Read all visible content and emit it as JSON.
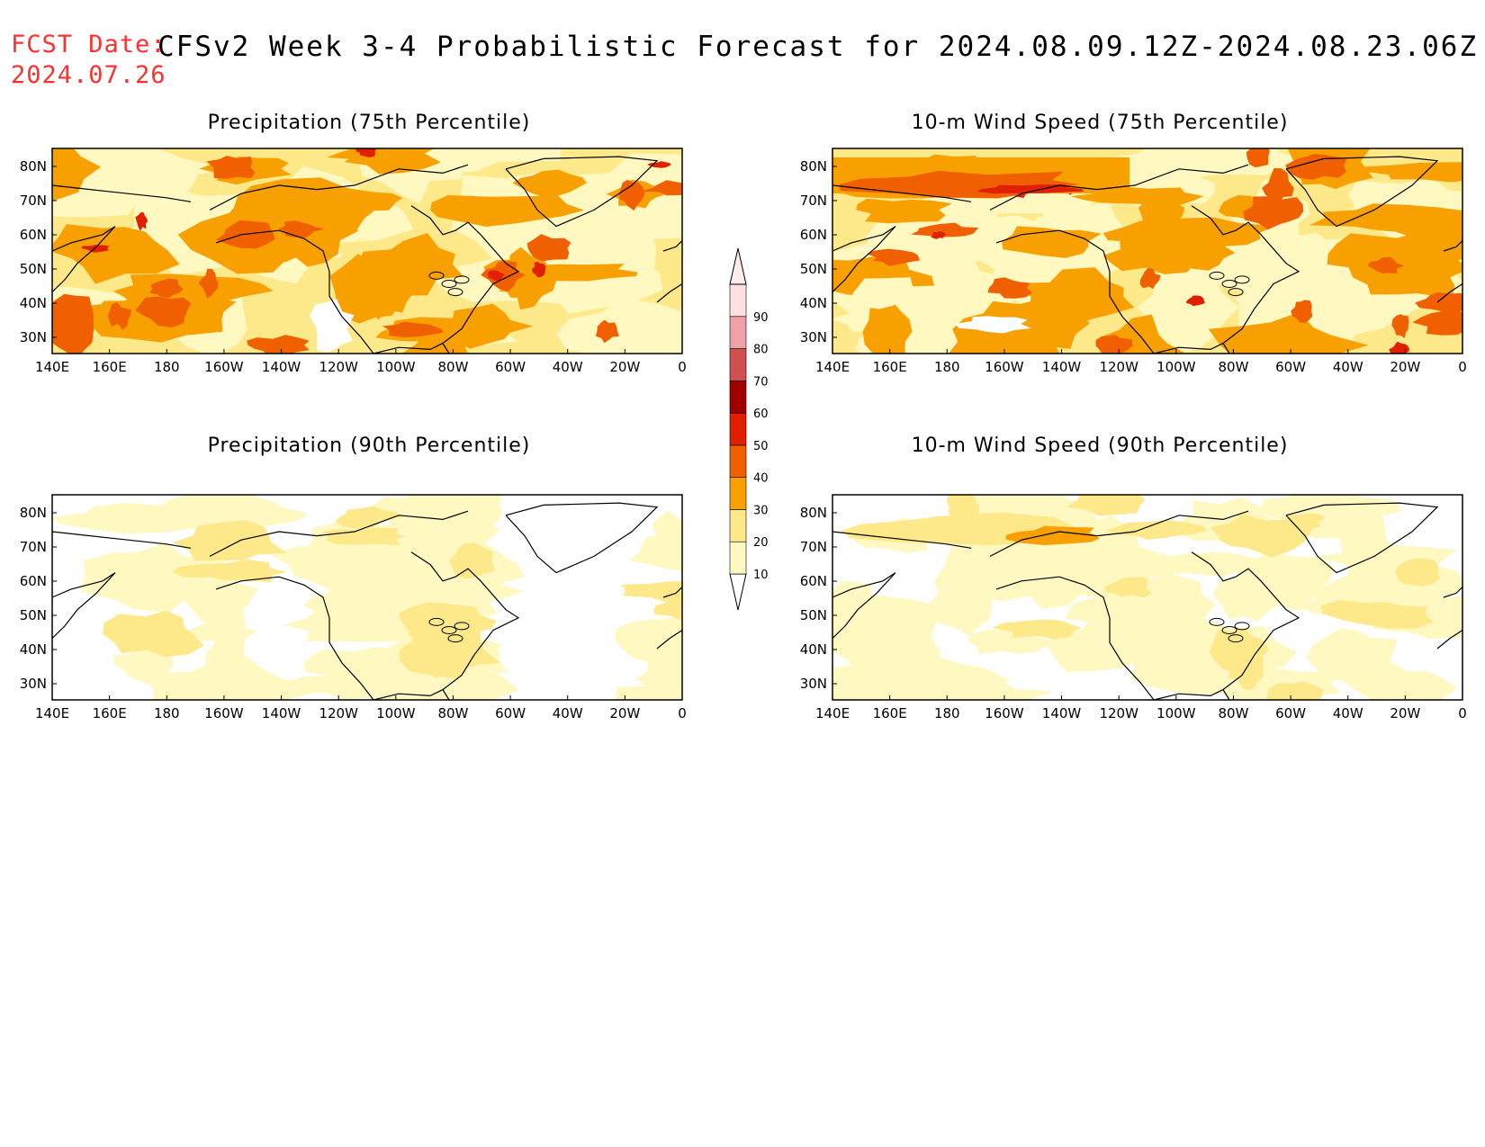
{
  "header": {
    "fcst_label": "FCST Date:",
    "fcst_date": "2024.07.26",
    "title": "CFSv2 Week 3-4 Probabilistic Forecast for 2024.08.09.12Z-2024.08.23.06Z"
  },
  "axes": {
    "lat_labels": [
      "80N",
      "70N",
      "60N",
      "50N",
      "40N",
      "30N"
    ],
    "lon_labels": [
      "140E",
      "160E",
      "180",
      "160W",
      "140W",
      "120W",
      "100W",
      "80W",
      "60W",
      "40W",
      "20W",
      "0"
    ]
  },
  "panels": [
    {
      "title": "Precipitation (75th Percentile)",
      "intensity": "moderate"
    },
    {
      "title": "10-m Wind Speed (75th Percentile)",
      "intensity": "moderate-high"
    },
    {
      "title": "Precipitation (90th Percentile)",
      "intensity": "low"
    },
    {
      "title": "10-m Wind Speed (90th Percentile)",
      "intensity": "low"
    }
  ],
  "colorbar": {
    "levels": [
      "10",
      "20",
      "30",
      "40",
      "50",
      "60",
      "70",
      "80",
      "90"
    ],
    "colors": [
      "#fff8c0",
      "#fde88a",
      "#f8a000",
      "#f06000",
      "#e02000",
      "#a00000",
      "#d05050",
      "#f0a0a8",
      "#fde0e4"
    ]
  }
}
